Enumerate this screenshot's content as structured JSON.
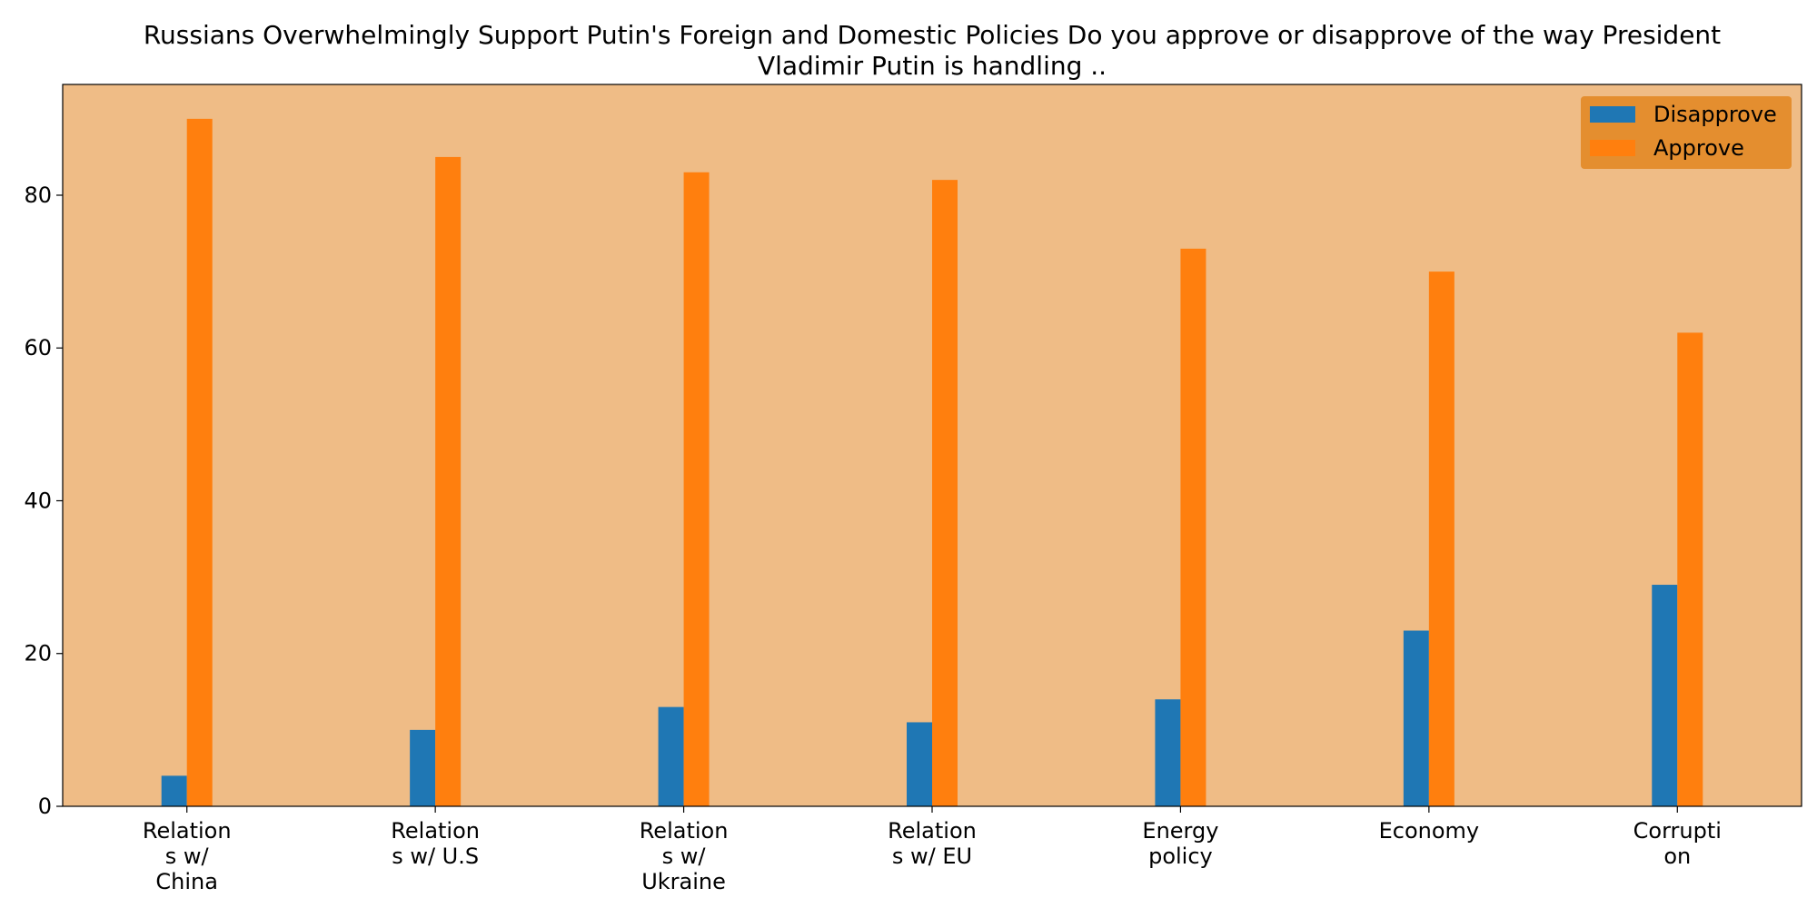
{
  "chart_data": {
    "type": "bar",
    "title_lines": [
      "Russians Overwhelmingly Support Putin's Foreign and Domestic Policies Do you approve or disapprove of the way President",
      "Vladimir Putin is handling .."
    ],
    "categories": [
      [
        "Relation",
        "s w/",
        "China"
      ],
      [
        "Relation",
        "s w/ U.S"
      ],
      [
        "Relation",
        "s w/",
        "Ukraine"
      ],
      [
        "Relation",
        "s w/ EU"
      ],
      [
        "Energy",
        "policy"
      ],
      [
        "Economy"
      ],
      [
        "Corrupti",
        "on"
      ]
    ],
    "series": [
      {
        "name": "Disapprove",
        "color": "#1f77b4",
        "values": [
          4,
          10,
          13,
          11,
          14,
          23,
          29
        ]
      },
      {
        "name": "Approve",
        "color": "#ff7f0e",
        "values": [
          90,
          85,
          83,
          82,
          73,
          70,
          62
        ]
      }
    ],
    "ylim": [
      0,
      94.5
    ],
    "yticks": [
      0,
      20,
      40,
      60,
      80
    ],
    "plot_background": "#efbc86",
    "legend_background": "#e38b2a",
    "legend_position": "upper right",
    "grid": false
  }
}
